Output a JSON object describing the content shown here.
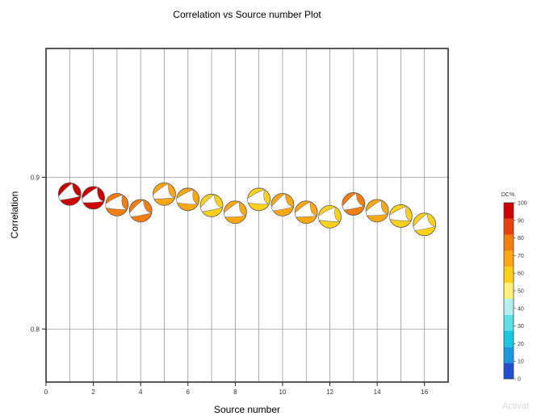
{
  "chart_data": {
    "type": "scatter",
    "title": "Correlation vs Source number Plot",
    "xlabel": "Source number",
    "ylabel": "Correlation",
    "xlim": [
      0,
      17
    ],
    "ylim": [
      0.765,
      0.985
    ],
    "xticks": [
      0,
      2,
      4,
      6,
      8,
      10,
      12,
      14,
      16
    ],
    "yticks": [
      0.8,
      0.9
    ],
    "ytick_labels": [
      "0.8",
      "0.9"
    ],
    "xgrid": [
      1,
      2,
      3,
      4,
      5,
      6,
      7,
      8,
      9,
      10,
      11,
      12,
      13,
      14,
      15,
      16
    ],
    "grid": true,
    "marker": "focal-mechanism beachball",
    "points": [
      {
        "x": 1,
        "y": 0.889,
        "dc": 98
      },
      {
        "x": 2,
        "y": 0.8865,
        "dc": 95
      },
      {
        "x": 3,
        "y": 0.882,
        "dc": 80
      },
      {
        "x": 4,
        "y": 0.878,
        "dc": 76
      },
      {
        "x": 5,
        "y": 0.889,
        "dc": 72
      },
      {
        "x": 6,
        "y": 0.8855,
        "dc": 74
      },
      {
        "x": 7,
        "y": 0.8815,
        "dc": 62
      },
      {
        "x": 8,
        "y": 0.877,
        "dc": 67
      },
      {
        "x": 9,
        "y": 0.8855,
        "dc": 60
      },
      {
        "x": 10,
        "y": 0.882,
        "dc": 66
      },
      {
        "x": 11,
        "y": 0.877,
        "dc": 70
      },
      {
        "x": 12,
        "y": 0.874,
        "dc": 60
      },
      {
        "x": 13,
        "y": 0.8825,
        "dc": 77
      },
      {
        "x": 14,
        "y": 0.878,
        "dc": 65
      },
      {
        "x": 15,
        "y": 0.8745,
        "dc": 63
      },
      {
        "x": 16,
        "y": 0.869,
        "dc": 55
      }
    ],
    "colorbar": {
      "label": "DC%",
      "min": 0,
      "max": 100,
      "ticks": [
        0,
        10,
        20,
        30,
        40,
        50,
        60,
        70,
        80,
        90,
        100
      ],
      "tick_labels": [
        "0",
        "10",
        "20",
        "30",
        "40",
        "50",
        "60",
        "70",
        "80",
        "90",
        "100"
      ],
      "colors": [
        "#2050d0",
        "#1a98e0",
        "#17c8e0",
        "#5fe0e8",
        "#b4f0f0",
        "#fff27a",
        "#ffd11a",
        "#fba814",
        "#f37e10",
        "#e8400c",
        "#cc0000"
      ]
    }
  },
  "overlay": {
    "watermark": "Activat"
  }
}
